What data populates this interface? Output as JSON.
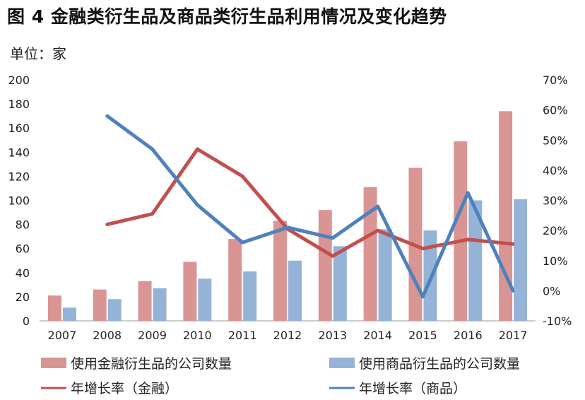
{
  "title": "图 4  金融类衍生品及商品类衍生品利用情况及变化趋势",
  "unit": "单位：家",
  "chart_data": {
    "type": "bar",
    "categories": [
      "2007",
      "2008",
      "2009",
      "2010",
      "2011",
      "2012",
      "2013",
      "2014",
      "2015",
      "2016",
      "2017"
    ],
    "series": [
      {
        "name": "使用金融衍生品的公司数量",
        "type": "bar",
        "axis": "left",
        "color": "#d99594",
        "values": [
          21,
          26,
          33,
          49,
          68,
          83,
          92,
          111,
          127,
          149,
          174
        ]
      },
      {
        "name": "使用商品衍生品的公司数量",
        "type": "bar",
        "axis": "left",
        "color": "#95b3d7",
        "values": [
          11,
          18,
          27,
          35,
          41,
          50,
          62,
          76,
          75,
          100,
          101
        ]
      },
      {
        "name": "年增长率（金融）",
        "type": "line",
        "axis": "right",
        "color": "#c0504d",
        "values": [
          null,
          22,
          25.5,
          47,
          38,
          20.5,
          11.5,
          20,
          14,
          17,
          15.5
        ]
      },
      {
        "name": "年增长率（商品）",
        "type": "line",
        "axis": "right",
        "color": "#4f81bd",
        "values": [
          null,
          58,
          47,
          28.5,
          16,
          21,
          17.5,
          28,
          -2,
          32.5,
          0
        ]
      }
    ],
    "y_left": {
      "min": 0,
      "max": 200,
      "step": 20
    },
    "y_right": {
      "min": -10,
      "max": 70,
      "step": 10,
      "suffix": "%"
    },
    "xlabel": "",
    "ylabel": "",
    "grid": false,
    "legend_position": "bottom"
  }
}
